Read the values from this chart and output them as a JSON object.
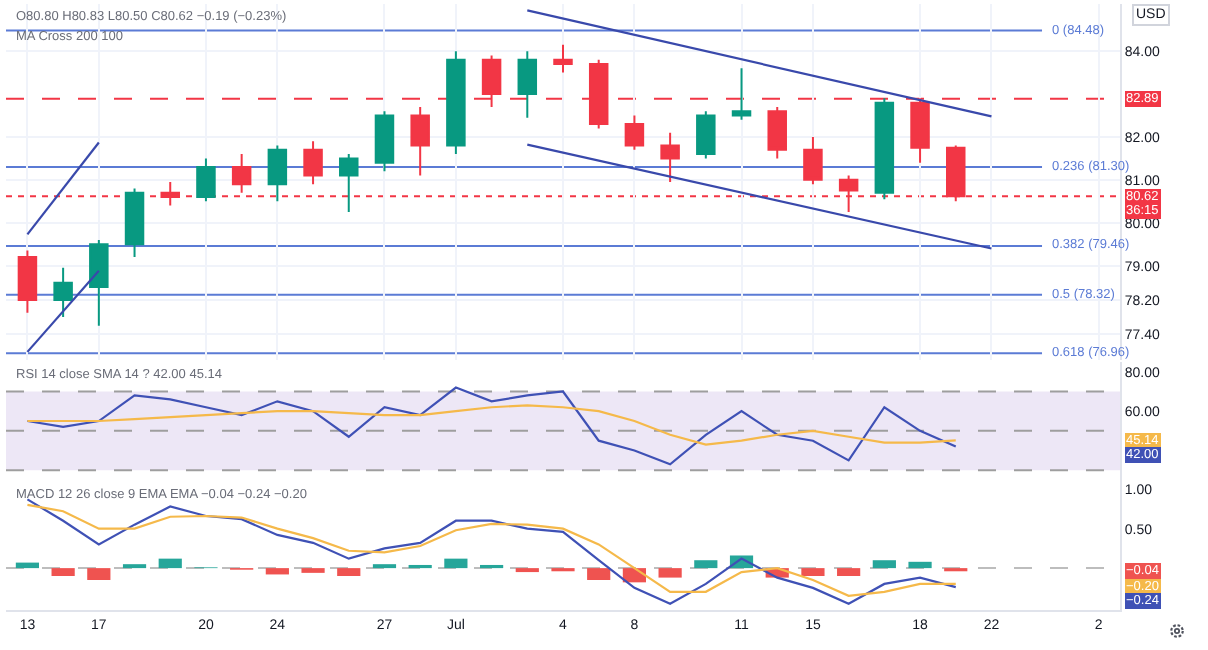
{
  "chart_data": [
    {
      "type": "candlestick",
      "annotations": [
        "O80.80 H80.83 L80.50 C80.62 −0.19 (−0.23%)",
        "MA Cross 200 100",
        "USD",
        "36:15"
      ],
      "ohlc": [
        [
          79.2,
          79.35,
          77.9,
          78.2
        ],
        [
          78.2,
          78.95,
          77.8,
          78.6
        ],
        [
          78.5,
          79.6,
          77.6,
          79.5
        ],
        [
          79.5,
          80.8,
          79.2,
          80.7
        ],
        [
          80.7,
          80.95,
          80.4,
          80.6
        ],
        [
          80.6,
          81.5,
          80.5,
          81.3
        ],
        [
          81.3,
          81.6,
          80.7,
          80.9
        ],
        [
          80.9,
          81.8,
          80.5,
          81.7
        ],
        [
          81.7,
          81.9,
          80.9,
          81.1
        ],
        [
          81.1,
          81.6,
          80.25,
          81.5
        ],
        [
          81.4,
          82.6,
          81.2,
          82.5
        ],
        [
          82.5,
          82.7,
          81.1,
          81.8
        ],
        [
          81.8,
          84.0,
          81.6,
          83.8
        ],
        [
          83.8,
          83.9,
          82.7,
          83.0
        ],
        [
          83.0,
          84.0,
          82.45,
          83.8
        ],
        [
          83.8,
          84.15,
          83.5,
          83.7
        ],
        [
          83.7,
          83.8,
          82.2,
          82.3
        ],
        [
          82.3,
          82.5,
          81.7,
          81.8
        ],
        [
          81.8,
          82.1,
          80.95,
          81.5
        ],
        [
          81.6,
          82.6,
          81.5,
          82.5
        ],
        [
          82.5,
          83.6,
          82.4,
          82.6
        ],
        [
          82.6,
          82.7,
          81.5,
          81.7
        ],
        [
          81.7,
          82.0,
          80.9,
          81.0
        ],
        [
          81.0,
          81.1,
          80.25,
          80.75
        ],
        [
          80.7,
          82.9,
          80.55,
          82.8
        ],
        [
          82.8,
          82.9,
          81.4,
          81.75
        ],
        [
          81.75,
          81.8,
          80.5,
          80.62
        ],
        null,
        null,
        null,
        null
      ],
      "colors": [
        "#f23645",
        "#089981",
        "#089981",
        "#089981",
        "#f23645",
        "#089981",
        "#f23645",
        "#089981",
        "#f23645",
        "#089981",
        "#089981",
        "#f23645",
        "#089981",
        "#f23645",
        "#089981",
        "#f23645",
        "#f23645",
        "#f23645",
        "#f23645",
        "#089981",
        "#089981",
        "#f23645",
        "#f23645",
        "#f23645",
        "#089981",
        "#f23645",
        "#f23645",
        null,
        null,
        null,
        null
      ],
      "series": [
        {
          "type": "line",
          "color": "#3949ab",
          "values": [
            null,
            null,
            null,
            null,
            null,
            null,
            null,
            null,
            null,
            null,
            null,
            null,
            null,
            null,
            84.95,
            null,
            null,
            null,
            null,
            null,
            null,
            null,
            null,
            null,
            null,
            null,
            null,
            82.48,
            null,
            null,
            null
          ]
        },
        {
          "type": "line",
          "color": "#3949ab",
          "values": [
            null,
            null,
            null,
            null,
            null,
            null,
            null,
            null,
            null,
            null,
            null,
            null,
            null,
            null,
            81.82,
            null,
            null,
            null,
            null,
            null,
            null,
            null,
            null,
            null,
            null,
            null,
            null,
            79.4,
            null,
            null,
            null
          ]
        },
        {
          "type": "line",
          "color": "#3949ab",
          "values": [
            79.73,
            null,
            81.87,
            null,
            null,
            null,
            null,
            null,
            null,
            null,
            null,
            null,
            null,
            null,
            null,
            null,
            null,
            null,
            null,
            null,
            null,
            null,
            null,
            null,
            null,
            null,
            null,
            null,
            null,
            null,
            null
          ]
        },
        {
          "type": "line",
          "color": "#3949ab",
          "values": [
            76.99,
            null,
            78.88,
            null,
            null,
            null,
            null,
            null,
            null,
            null,
            null,
            null,
            null,
            null,
            null,
            null,
            null,
            null,
            null,
            null,
            null,
            null,
            null,
            null,
            null,
            null,
            null,
            null,
            null,
            null,
            null
          ]
        }
      ],
      "ref_lines": [
        {
          "axis": "y",
          "value": 84.48,
          "label": "0 (84.48)",
          "color": "#5b7bd5",
          "line_style": "solid"
        },
        {
          "axis": "y",
          "value": 81.3,
          "label": "0.236 (81.30)",
          "color": "#5b7bd5",
          "line_style": "solid"
        },
        {
          "axis": "y",
          "value": 79.46,
          "label": "0.382 (79.46)",
          "color": "#5b7bd5",
          "line_style": "solid"
        },
        {
          "axis": "y",
          "value": 78.32,
          "label": "0.5 (78.32)",
          "color": "#5b7bd5",
          "line_style": "solid"
        },
        {
          "axis": "y",
          "value": 76.96,
          "label": "0.618 (76.96)",
          "color": "#5b7bd5",
          "line_style": "solid"
        },
        {
          "axis": "y",
          "value": 82.89,
          "label": "82.89",
          "color": "#f23645",
          "line_style": "dashed"
        },
        {
          "axis": "y",
          "value": 80.62,
          "label": "80.62",
          "color": "#f23645",
          "line_style": "dotted"
        }
      ],
      "ylim": [
        76.8,
        85.1
      ],
      "yticks": [
        {
          "value": 84,
          "label": "84.00"
        },
        {
          "value": 82,
          "label": "82.00"
        },
        {
          "value": 81,
          "label": "81.00"
        },
        {
          "value": 80,
          "label": "80.00"
        },
        {
          "value": 79,
          "label": "79.00"
        },
        {
          "value": 78.2,
          "label": "78.20"
        },
        {
          "value": 77.4,
          "label": "77.40"
        }
      ],
      "grid": true,
      "tick_labels": "y"
    },
    {
      "type": "line",
      "annotations": [
        "RSI 14 close SMA 14 ? 42.00 45.14",
        {
          "text": "45.14",
          "y": 45.14
        },
        "42.00"
      ],
      "series": [
        {
          "color": "#3f51b5",
          "values": [
            55,
            52,
            55,
            68,
            66,
            62,
            58,
            65,
            60,
            47,
            62,
            58,
            72,
            65,
            68,
            70,
            45,
            40,
            33,
            48,
            60,
            48,
            45,
            35,
            62,
            50,
            42,
            null,
            null,
            null,
            null
          ]
        },
        {
          "color": "#f5b94a",
          "values": [
            55,
            55,
            55,
            56,
            57,
            58,
            59,
            60,
            60,
            59,
            58,
            58,
            60,
            62,
            63,
            62,
            60,
            55,
            48,
            43,
            45,
            48,
            50,
            47,
            44,
            44,
            45.14,
            null,
            null,
            null,
            null
          ]
        }
      ],
      "ref_lines": [
        {
          "axis": "y",
          "value": 70,
          "color": "#9e9e9e",
          "line_style": "dashed"
        },
        {
          "axis": "y",
          "value": 50,
          "color": "#9e9e9e",
          "line_style": "dashed"
        },
        {
          "axis": "y",
          "value": 30,
          "color": "#9e9e9e",
          "line_style": "dashed"
        }
      ],
      "bands": [
        {
          "axis": "y",
          "from": 30,
          "to": 70,
          "color": "#ede7f6"
        }
      ],
      "ylim": [
        24,
        85
      ],
      "yticks": [
        {
          "value": 80,
          "label": "80.00"
        },
        {
          "value": 60,
          "label": "60.00"
        }
      ],
      "tick_labels": "y"
    },
    {
      "type": "line",
      "annotations": [
        "MACD 12 26 close 9 EMA EMA −0.04 −0.24 −0.20",
        {
          "text": "−0.04",
          "y": -0.04
        },
        {
          "text": "−0.20",
          "y": -0.2
        },
        "−0.24"
      ],
      "categories": [
        "13",
        null,
        "17",
        null,
        null,
        "20",
        null,
        "24",
        null,
        null,
        "27",
        null,
        "Jul",
        null,
        null,
        "4",
        null,
        "8",
        null,
        null,
        "11",
        null,
        "15",
        null,
        null,
        "18",
        null,
        "22",
        null,
        null,
        "2"
      ],
      "series": [
        {
          "type": "bar",
          "colors": [
            "#26a69a",
            "#ef5350",
            "#ef5350",
            "#26a69a",
            "#26a69a",
            "#26a69a",
            "#ef5350",
            "#ef5350",
            "#ef5350",
            "#ef5350",
            "#26a69a",
            "#26a69a",
            "#26a69a",
            "#26a69a",
            "#ef5350",
            "#ef5350",
            "#ef5350",
            "#ef5350",
            "#ef5350",
            "#26a69a",
            "#26a69a",
            "#ef5350",
            "#ef5350",
            "#ef5350",
            "#26a69a",
            "#26a69a",
            "#ef5350",
            null,
            null,
            null,
            null
          ],
          "values": [
            0.07,
            -0.1,
            -0.15,
            0.05,
            0.12,
            0.01,
            -0.02,
            -0.08,
            -0.06,
            -0.1,
            0.05,
            0.04,
            0.12,
            0.04,
            -0.05,
            -0.04,
            -0.15,
            -0.18,
            -0.12,
            0.1,
            0.16,
            -0.12,
            -0.1,
            -0.1,
            0.1,
            0.08,
            -0.04,
            null,
            null,
            null,
            null
          ]
        },
        {
          "color": "#3f51b5",
          "values": [
            0.87,
            0.6,
            0.3,
            0.55,
            0.78,
            0.66,
            0.62,
            0.42,
            0.32,
            0.12,
            0.25,
            0.32,
            0.6,
            0.6,
            0.5,
            0.46,
            0.1,
            -0.25,
            -0.45,
            -0.2,
            0.12,
            -0.12,
            -0.25,
            -0.45,
            -0.2,
            -0.12,
            -0.24,
            null,
            null,
            null,
            null
          ]
        },
        {
          "color": "#f5b94a",
          "values": [
            0.8,
            0.72,
            0.5,
            0.5,
            0.65,
            0.66,
            0.64,
            0.5,
            0.38,
            0.22,
            0.2,
            0.28,
            0.48,
            0.56,
            0.55,
            0.5,
            0.3,
            0.0,
            -0.3,
            -0.3,
            -0.05,
            0.0,
            -0.15,
            -0.35,
            -0.3,
            -0.2,
            -0.2,
            null,
            null,
            null,
            null
          ]
        }
      ],
      "ref_lines": [
        {
          "axis": "y",
          "value": 0,
          "color": "#bdbdbd",
          "line_style": "dashed"
        }
      ],
      "ylim": [
        -0.53,
        1.09
      ],
      "yticks": [
        {
          "value": 1,
          "label": "1.00"
        },
        {
          "value": 0.5,
          "label": "0.50"
        }
      ]
    }
  ]
}
